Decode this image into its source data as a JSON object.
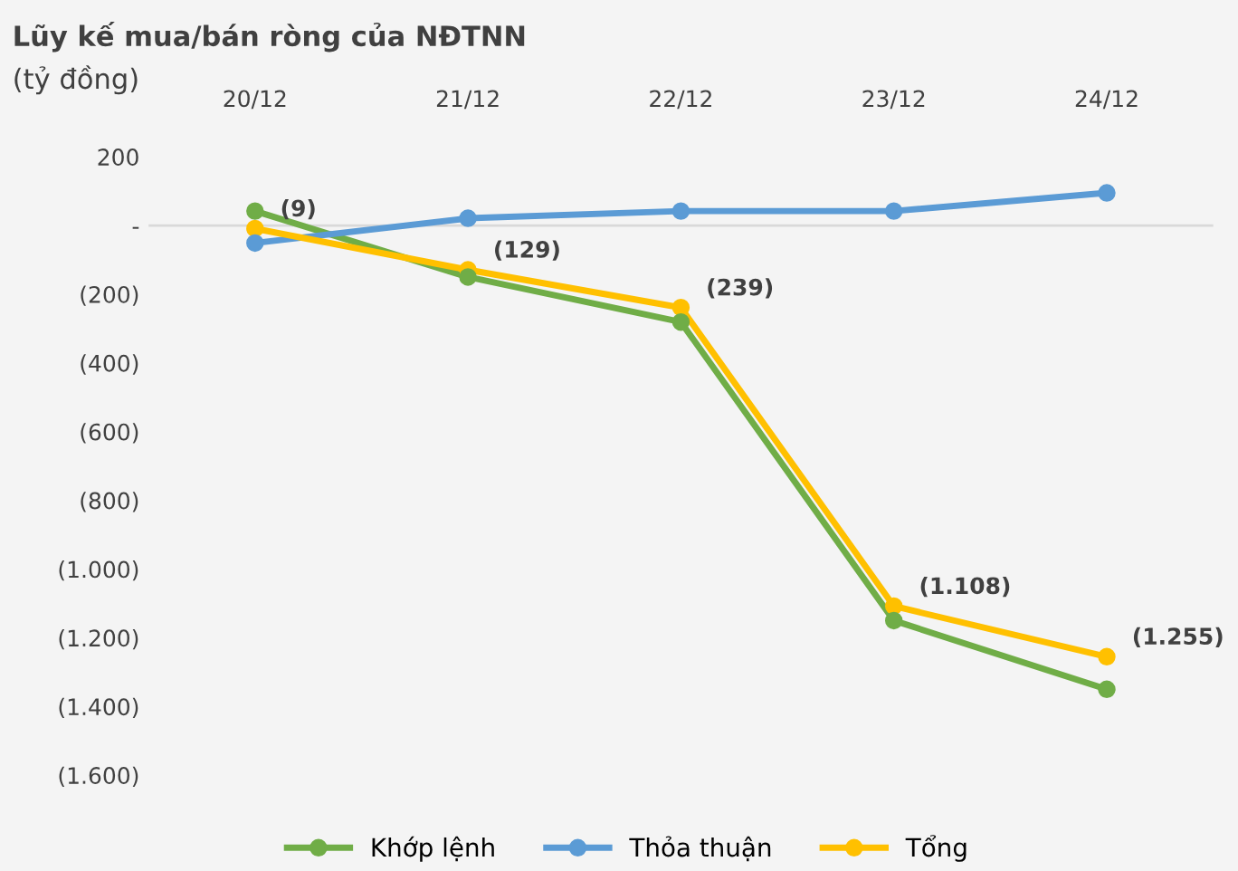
{
  "chart_data": {
    "type": "line",
    "title": "Lũy kế mua/bán ròng của NĐTNN",
    "subtitle": "(tỷ đồng)",
    "categories": [
      "20/12",
      "21/12",
      "22/12",
      "23/12",
      "24/12"
    ],
    "series": [
      {
        "name": "Khớp lệnh",
        "color": "#70ad47",
        "values": [
          42,
          -150,
          -281,
          -1150,
          -1350
        ]
      },
      {
        "name": "Thỏa thuận",
        "color": "#5b9bd5",
        "values": [
          -51,
          21,
          42,
          42,
          95
        ]
      },
      {
        "name": "Tổng",
        "color": "#ffc000",
        "values": [
          -9,
          -129,
          -239,
          -1108,
          -1255
        ],
        "value_labels": [
          "(9)",
          "(129)",
          "(239)",
          "(1.108)",
          "(1.255)"
        ]
      }
    ],
    "ylim": [
      -1600,
      200
    ],
    "yticks": [
      {
        "value": 200,
        "label": "200"
      },
      {
        "value": 0,
        "label": "-"
      },
      {
        "value": -200,
        "label": "(200)"
      },
      {
        "value": -400,
        "label": "(400)"
      },
      {
        "value": -600,
        "label": "(600)"
      },
      {
        "value": -800,
        "label": "(800)"
      },
      {
        "value": -1000,
        "label": "(1.000)"
      },
      {
        "value": -1200,
        "label": "(1.200)"
      },
      {
        "value": -1400,
        "label": "(1.400)"
      },
      {
        "value": -1600,
        "label": "(1.600)"
      }
    ],
    "ref_lines": [
      {
        "axis": "y",
        "value": 0,
        "color": "#d9d9d9"
      }
    ],
    "grid": false,
    "legend": "bottom",
    "marker": "circle",
    "line_style": "solid"
  }
}
